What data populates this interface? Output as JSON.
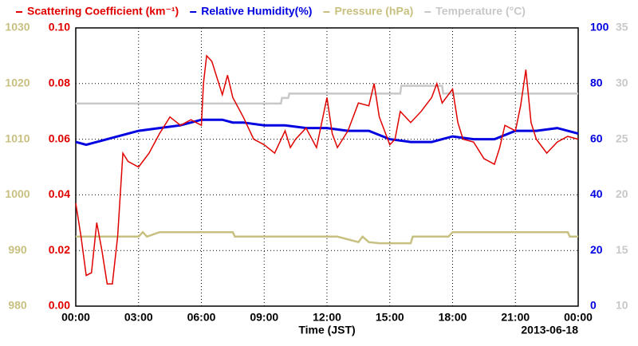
{
  "chart_data": {
    "type": "line",
    "xlabel": "Time (JST)",
    "date_label": "2013-06-18",
    "xlim": [
      0,
      24
    ],
    "xticks": [
      {
        "value": 0,
        "label": "00:00"
      },
      {
        "value": 3,
        "label": "03:00"
      },
      {
        "value": 6,
        "label": "06:00"
      },
      {
        "value": 9,
        "label": "09:00"
      },
      {
        "value": 12,
        "label": "12:00"
      },
      {
        "value": 15,
        "label": "15:00"
      },
      {
        "value": 18,
        "label": "18:00"
      },
      {
        "value": 21,
        "label": "21:00"
      },
      {
        "value": 24,
        "label": "00:00"
      }
    ],
    "ylim": [
      0,
      0.1
    ],
    "yticks": [
      {
        "value": 0,
        "label": "0.00"
      },
      {
        "value": 0.02,
        "label": "0.02"
      },
      {
        "value": 0.04,
        "label": "0.04"
      },
      {
        "value": 0.06,
        "label": "0.06"
      },
      {
        "value": 0.08,
        "label": "0.08"
      },
      {
        "value": 0.1,
        "label": "0.10"
      }
    ],
    "y2lim": [
      0,
      100
    ],
    "y2ticks": [
      0,
      20,
      40,
      60,
      80,
      100
    ],
    "y3lim": [
      980,
      1030
    ],
    "y3ticks": [
      980,
      990,
      1000,
      1010,
      1020,
      1030
    ],
    "y4lim": [
      10,
      35
    ],
    "y4ticks": [
      10,
      15,
      20,
      25,
      30,
      35
    ],
    "grid": true,
    "series": [
      {
        "name": "Scattering Coefficient (km⁻¹)",
        "color": "#e00000",
        "axis": "y",
        "x": [
          0,
          0.25,
          0.5,
          0.75,
          1.0,
          1.25,
          1.5,
          1.75,
          2.0,
          2.25,
          2.5,
          3.0,
          3.5,
          4.0,
          4.5,
          5.0,
          5.5,
          6.0,
          6.1,
          6.25,
          6.5,
          7.0,
          7.25,
          7.5,
          8.0,
          8.5,
          9.0,
          9.5,
          10.0,
          10.25,
          10.5,
          11.0,
          11.5,
          12.0,
          12.25,
          12.5,
          13.0,
          13.5,
          14.0,
          14.25,
          14.5,
          15.0,
          15.25,
          15.5,
          16.0,
          16.5,
          17.0,
          17.25,
          17.5,
          18.0,
          18.25,
          18.5,
          19.0,
          19.5,
          20.0,
          20.25,
          20.5,
          21.0,
          21.25,
          21.5,
          21.75,
          22.0,
          22.5,
          23.0,
          23.5,
          24.0
        ],
        "values": [
          0.037,
          0.025,
          0.011,
          0.012,
          0.03,
          0.02,
          0.008,
          0.008,
          0.025,
          0.055,
          0.052,
          0.05,
          0.055,
          0.062,
          0.068,
          0.065,
          0.067,
          0.065,
          0.08,
          0.09,
          0.088,
          0.076,
          0.083,
          0.075,
          0.068,
          0.06,
          0.058,
          0.055,
          0.063,
          0.057,
          0.06,
          0.064,
          0.057,
          0.075,
          0.062,
          0.057,
          0.063,
          0.073,
          0.072,
          0.08,
          0.068,
          0.058,
          0.06,
          0.07,
          0.066,
          0.07,
          0.075,
          0.08,
          0.073,
          0.078,
          0.066,
          0.06,
          0.059,
          0.053,
          0.051,
          0.057,
          0.065,
          0.063,
          0.072,
          0.085,
          0.066,
          0.06,
          0.055,
          0.059,
          0.061,
          0.06
        ]
      },
      {
        "name": "Relative Humidity(%)",
        "color": "#0000e0",
        "axis": "y2",
        "x": [
          0,
          0.5,
          1.0,
          2.0,
          3.0,
          4.0,
          5.0,
          6.0,
          7.0,
          7.5,
          8.0,
          9.0,
          10.0,
          11.0,
          12.0,
          13.0,
          14.0,
          15.0,
          16.0,
          17.0,
          18.0,
          19.0,
          20.0,
          21.0,
          22.0,
          23.0,
          24.0
        ],
        "values": [
          59,
          58,
          59,
          61,
          63,
          64,
          65,
          67,
          67,
          66,
          66,
          65,
          65,
          64,
          64,
          63,
          63,
          60,
          59,
          59,
          61,
          60,
          60,
          63,
          63,
          64,
          62
        ]
      },
      {
        "name": "Pressure (hPa)",
        "color": "#c8c080",
        "axis": "y3",
        "x": [
          0,
          3.0,
          3.2,
          3.4,
          4.0,
          7.5,
          7.6,
          8.0,
          12.5,
          13.5,
          13.7,
          14.0,
          14.5,
          16.0,
          16.1,
          17.8,
          18.0,
          23.5,
          23.6,
          24.0
        ],
        "values": [
          992.5,
          992.5,
          993.3,
          992.5,
          993.3,
          993.3,
          992.5,
          992.5,
          992.5,
          991.5,
          992.5,
          991.5,
          991.3,
          991.3,
          992.5,
          992.5,
          993.3,
          993.3,
          992.5,
          992.5
        ]
      },
      {
        "name": "Temperature (°C)",
        "color": "#c8c8c8",
        "axis": "y4",
        "x": [
          0,
          9.8,
          9.85,
          10.15,
          10.2,
          15.5,
          15.55,
          17.5,
          17.55,
          24.0
        ],
        "values": [
          28.2,
          28.2,
          28.7,
          28.7,
          29.1,
          29.1,
          29.8,
          29.8,
          29.1,
          29.1
        ]
      }
    ]
  }
}
